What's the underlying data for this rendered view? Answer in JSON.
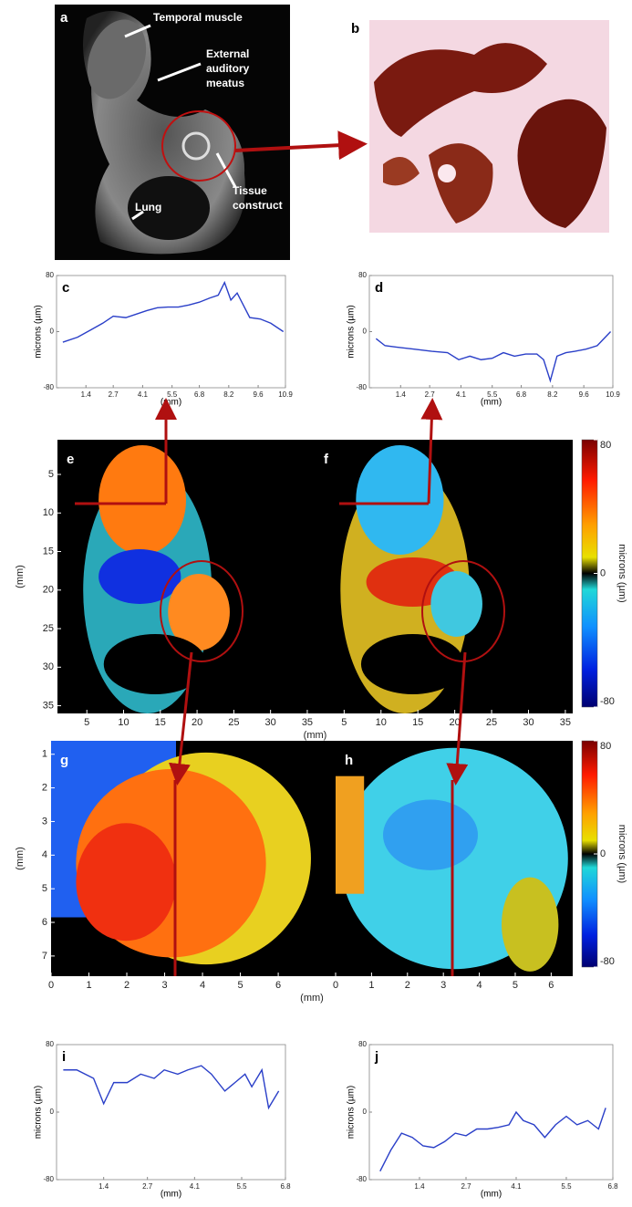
{
  "panel_a": {
    "label": "a",
    "annotations": [
      "Temporal muscle",
      "External auditory meatus",
      "Lung",
      "Tissue construct"
    ]
  },
  "panel_b": {
    "label": "b"
  },
  "chart_data": [
    {
      "type": "line",
      "panel": "c",
      "xlabel": "(mm)",
      "ylabel": "microns (µm)",
      "xlim": [
        0,
        10.9
      ],
      "ylim": [
        -80,
        80
      ],
      "xticks": [
        1.4,
        2.7,
        4.1,
        5.5,
        6.8,
        8.2,
        9.6,
        10.9
      ],
      "yticks": [
        -80,
        0,
        80
      ],
      "series": [
        {
          "color": "#2a3fc8",
          "x": [
            0.3,
            1.0,
            1.6,
            2.2,
            2.7,
            3.3,
            3.8,
            4.3,
            4.8,
            5.3,
            5.8,
            6.3,
            6.8,
            7.3,
            7.7,
            8.0,
            8.3,
            8.6,
            9.2,
            9.7,
            10.2,
            10.8
          ],
          "values": [
            -15,
            -8,
            2,
            12,
            22,
            20,
            25,
            30,
            34,
            35,
            35,
            38,
            42,
            48,
            52,
            70,
            45,
            55,
            20,
            18,
            12,
            0
          ]
        }
      ]
    },
    {
      "type": "line",
      "panel": "d",
      "xlabel": "(mm)",
      "ylabel": "microns (µm)",
      "xlim": [
        0,
        10.9
      ],
      "ylim": [
        -80,
        80
      ],
      "xticks": [
        1.4,
        2.7,
        4.1,
        5.5,
        6.8,
        8.2,
        9.6,
        10.9
      ],
      "yticks": [
        -80,
        0,
        80
      ],
      "series": [
        {
          "color": "#2a3fc8",
          "x": [
            0.3,
            0.7,
            1.2,
            2.0,
            2.8,
            3.5,
            4.0,
            4.5,
            5.0,
            5.5,
            6.0,
            6.5,
            7.0,
            7.5,
            7.8,
            8.1,
            8.4,
            8.8,
            9.2,
            9.7,
            10.2,
            10.8
          ],
          "values": [
            -10,
            -20,
            -22,
            -25,
            -28,
            -30,
            -40,
            -35,
            -40,
            -38,
            -30,
            -35,
            -32,
            -32,
            -40,
            -70,
            -35,
            -30,
            -28,
            -25,
            -20,
            0
          ]
        }
      ]
    },
    {
      "type": "line",
      "panel": "i",
      "xlabel": "(mm)",
      "ylabel": "microns (µm)",
      "xlim": [
        0,
        6.8
      ],
      "ylim": [
        -80,
        80
      ],
      "xticks": [
        1.4,
        2.7,
        4.1,
        5.5,
        6.8
      ],
      "yticks": [
        -80,
        0,
        80
      ],
      "series": [
        {
          "color": "#2a3fc8",
          "x": [
            0.2,
            0.6,
            1.1,
            1.4,
            1.7,
            2.1,
            2.5,
            2.9,
            3.2,
            3.6,
            3.9,
            4.3,
            4.6,
            5.0,
            5.3,
            5.6,
            5.8,
            6.1,
            6.3,
            6.6
          ],
          "values": [
            50,
            50,
            40,
            10,
            35,
            35,
            45,
            40,
            50,
            45,
            50,
            55,
            45,
            25,
            35,
            45,
            30,
            50,
            5,
            25
          ]
        }
      ]
    },
    {
      "type": "line",
      "panel": "j",
      "xlabel": "(mm)",
      "ylabel": "microns (µm)",
      "xlim": [
        0,
        6.8
      ],
      "ylim": [
        -80,
        80
      ],
      "xticks": [
        1.4,
        2.7,
        4.1,
        5.5,
        6.8
      ],
      "yticks": [
        -80,
        0,
        80
      ],
      "series": [
        {
          "color": "#2a3fc8",
          "x": [
            0.3,
            0.6,
            0.9,
            1.2,
            1.5,
            1.8,
            2.1,
            2.4,
            2.7,
            3.0,
            3.3,
            3.6,
            3.9,
            4.1,
            4.3,
            4.6,
            4.9,
            5.2,
            5.5,
            5.8,
            6.1,
            6.4,
            6.6
          ],
          "values": [
            -70,
            -45,
            -25,
            -30,
            -40,
            -42,
            -35,
            -25,
            -28,
            -20,
            -20,
            -18,
            -15,
            0,
            -10,
            -15,
            -30,
            -15,
            -5,
            -15,
            -10,
            -20,
            5
          ]
        }
      ]
    }
  ],
  "map_rows": [
    {
      "xlabel": "(mm)",
      "ylabel": "(mm)",
      "colorbar": {
        "label": "microns (µm)",
        "lim": [
          -80,
          80
        ],
        "ticks": [
          80,
          0,
          -80
        ]
      },
      "maps": [
        {
          "panel": "e",
          "xlim": [
            1,
            36
          ],
          "ylim": [
            0.5,
            36
          ],
          "xticks": [
            5,
            10,
            15,
            20,
            25,
            30,
            35
          ],
          "yticks": [
            5,
            10,
            15,
            20,
            25,
            30,
            35
          ]
        },
        {
          "panel": "f",
          "xlim": [
            1,
            36
          ],
          "ylim": [
            0.5,
            36
          ],
          "xticks": [
            5,
            10,
            15,
            20,
            25,
            30,
            35
          ]
        }
      ]
    },
    {
      "xlabel": "(mm)",
      "ylabel": "(mm)",
      "colorbar": {
        "label": "microns (µm)",
        "lim": [
          -80,
          80
        ],
        "ticks": [
          80,
          0,
          -80
        ]
      },
      "maps": [
        {
          "panel": "g",
          "xlim": [
            0,
            6.6
          ],
          "ylim": [
            0.6,
            7.6
          ],
          "xticks": [
            0,
            1,
            2,
            3,
            4,
            5,
            6
          ],
          "yticks": [
            1,
            2,
            3,
            4,
            5,
            6,
            7
          ]
        },
        {
          "panel": "h",
          "xlim": [
            0,
            6.6
          ],
          "ylim": [
            0.6,
            7.6
          ],
          "xticks": [
            0,
            1,
            2,
            3,
            4,
            5,
            6
          ]
        }
      ]
    }
  ]
}
